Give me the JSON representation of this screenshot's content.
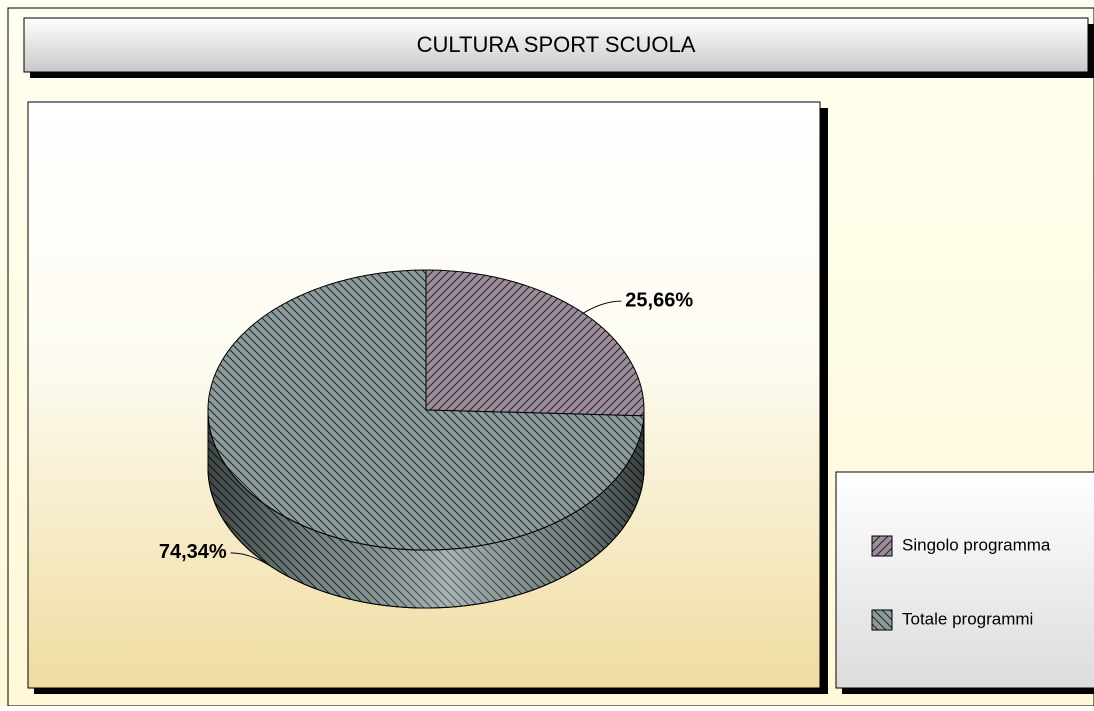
{
  "chart_data": {
    "type": "pie",
    "title": "CULTURA  SPORT SCUOLA",
    "categories": [
      "Singolo programma",
      "Totale programmi"
    ],
    "values": [
      25.66,
      74.34
    ],
    "value_labels": [
      "25,66%",
      "74,34%"
    ],
    "colors": [
      "#9c8c9c",
      "#8c9c9c"
    ],
    "legend": "right"
  }
}
